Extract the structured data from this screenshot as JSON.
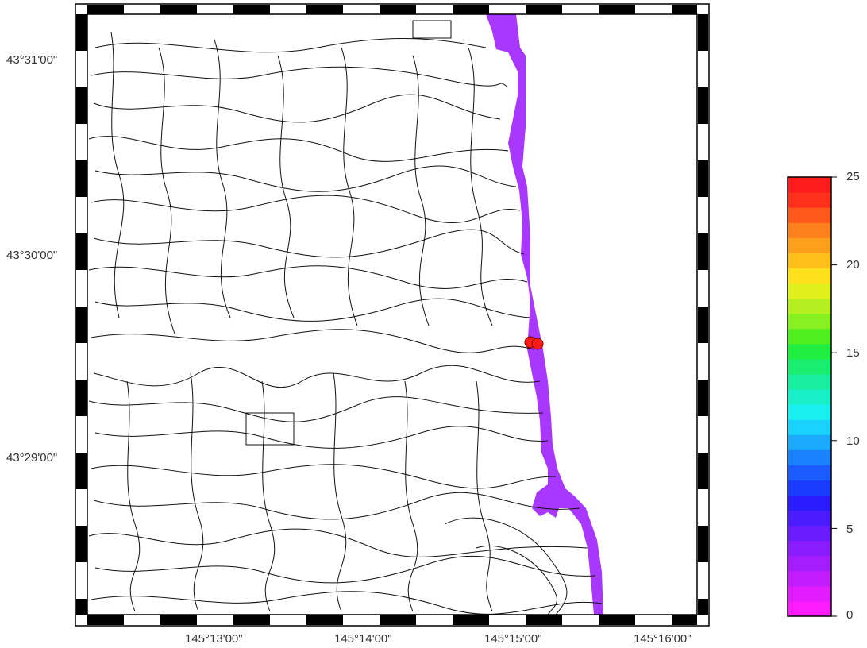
{
  "map": {
    "lat_labels": [
      "43°31'00\"",
      "43°30'00\"",
      "43°29'00\""
    ],
    "lon_labels": [
      "145°13'00\"",
      "145°14'00\"",
      "145°15'00\"",
      "145°16'00\""
    ]
  },
  "colorbar": {
    "ticks": [
      "25",
      "20",
      "15",
      "10",
      "5",
      "0"
    ],
    "min": 0,
    "max": 25,
    "colors": [
      "#ff1cff",
      "#e31cff",
      "#c31cff",
      "#a51cff",
      "#8a1cff",
      "#6a1cff",
      "#4a1cff",
      "#2a1cff",
      "#1a3cff",
      "#1a5cff",
      "#1a82ff",
      "#1aaaff",
      "#1ad2ff",
      "#1af0f0",
      "#1af0c8",
      "#1aeea0",
      "#1aee70",
      "#20ee40",
      "#50f020",
      "#86f020",
      "#b4f020",
      "#e0f01c",
      "#ffe01c",
      "#ffc01c",
      "#ffa01c",
      "#ff801c",
      "#ff5a1c",
      "#ff301c",
      "#ff1c1c"
    ]
  },
  "markers": {
    "color": "#ff1a1a"
  }
}
